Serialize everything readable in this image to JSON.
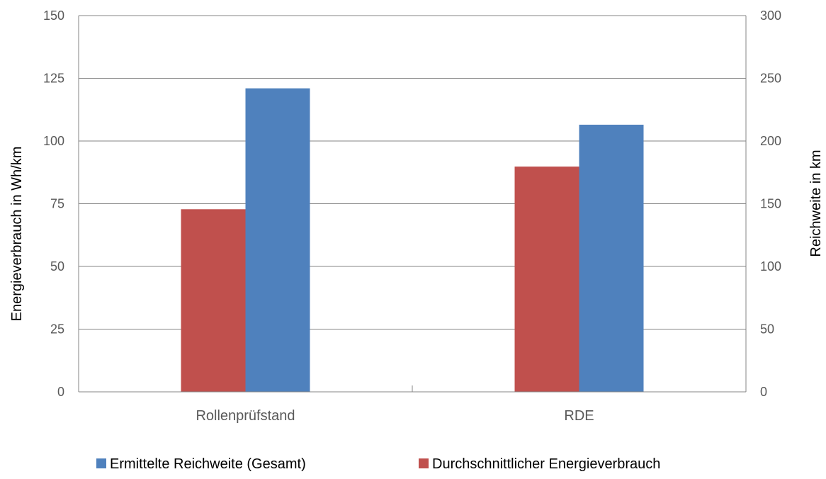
{
  "chart_data": {
    "type": "bar",
    "categories": [
      "Rollenprüfstand",
      "RDE"
    ],
    "series": [
      {
        "name": "Durchschnittlicher Energieverbrauch",
        "axis": "left",
        "color": "#C0504D",
        "values": [
          72.8,
          89.8
        ]
      },
      {
        "name": "Ermittelte Reichweite (Gesamt)",
        "axis": "right",
        "color": "#4F81BD",
        "values": [
          242,
          213
        ]
      }
    ],
    "ylabel": "Energieverbrauch in Wh/km",
    "ylim": [
      0,
      150
    ],
    "yticks": [
      "0",
      "25",
      "50",
      "75",
      "100",
      "125",
      "150"
    ],
    "y2label": "Reichweite in km",
    "y2lim": [
      0,
      300
    ],
    "y2ticks": [
      "0",
      "50",
      "100",
      "150",
      "200",
      "250",
      "300"
    ],
    "grid": true,
    "legend": {
      "position": "bottom",
      "order": [
        "Ermittelte Reichweite (Gesamt)",
        "Durchschnittlicher Energieverbrauch"
      ]
    }
  }
}
